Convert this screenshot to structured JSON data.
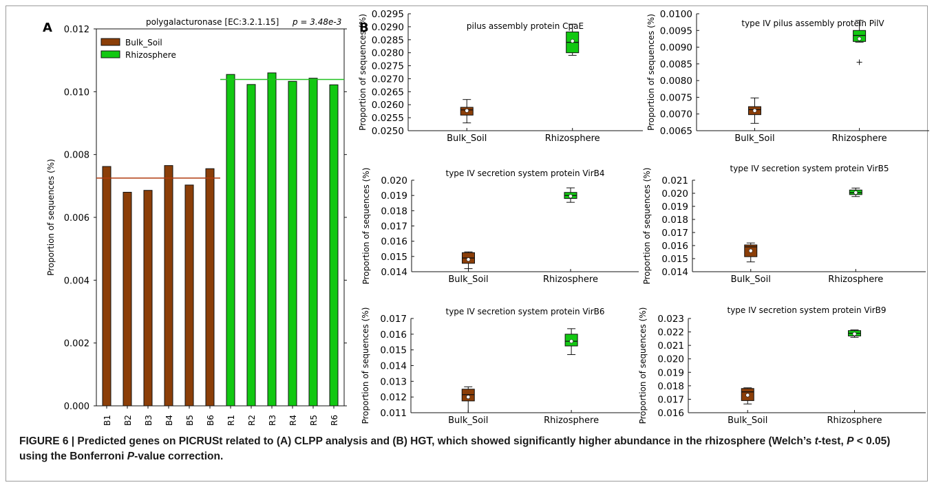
{
  "panel_labels": {
    "a": "A",
    "b": "B"
  },
  "colors": {
    "bulk": "#8b3e08",
    "rhizosphere": "#12c812",
    "bulk_line": "#b03a0e",
    "rhizo_line": "#20c020"
  },
  "caption": {
    "prefix": "FIGURE 6 | Predicted genes on PICRUSt related to (A) CLPP analysis and (B) HGT, which showed significantly higher abundance in the rhizosphere (Welch’s ",
    "t": "t",
    "mid": "-test, ",
    "P1": "P",
    "mid2": " < 0.05) using the Bonferroni ",
    "P2": "P",
    "suffix": "-value correction."
  },
  "chart_data": [
    {
      "type": "bar",
      "title": "polygalacturonase [EC:3.2.1.15]",
      "pvalue": "p = 3.48e-3",
      "ylabel": "Proportion of sequences (%)",
      "ylim": [
        0,
        0.012
      ],
      "yticks": [
        "0.000",
        "0.002",
        "0.004",
        "0.006",
        "0.008",
        "0.010",
        "0.012"
      ],
      "categories": [
        "B1",
        "B2",
        "B3",
        "B4",
        "B5",
        "B6",
        "R1",
        "R2",
        "R3",
        "R4",
        "R5",
        "R6"
      ],
      "values": [
        0.00762,
        0.0068,
        0.00686,
        0.00765,
        0.00703,
        0.00755,
        0.01055,
        0.01023,
        0.0106,
        0.01033,
        0.01043,
        0.01022
      ],
      "groups": [
        "bulk",
        "bulk",
        "bulk",
        "bulk",
        "bulk",
        "bulk",
        "rhizo",
        "rhizo",
        "rhizo",
        "rhizo",
        "rhizo",
        "rhizo"
      ],
      "group_means": {
        "bulk": 0.00725,
        "rhizo": 0.01039
      },
      "legend": [
        {
          "key": "bulk",
          "label": "Bulk_Soil"
        },
        {
          "key": "rhizo",
          "label": "Rhizosphere"
        }
      ],
      "legend_position": "top-left"
    },
    {
      "type": "box",
      "title": "pilus assembly protein CpaE",
      "ylabel": "Proportion of sequences (%)",
      "ylim": [
        0.025,
        0.0295
      ],
      "yticks": [
        "0.0250",
        "0.0255",
        "0.0260",
        "0.0265",
        "0.0270",
        "0.0275",
        "0.0280",
        "0.0285",
        "0.0290",
        "0.0295"
      ],
      "categories": [
        "Bulk_Soil",
        "Rhizosphere"
      ],
      "boxes": [
        {
          "whislo": 0.0253,
          "q1": 0.0256,
          "med": 0.0258,
          "mean": 0.02577,
          "q3": 0.0259,
          "whishi": 0.0262,
          "fliers": []
        },
        {
          "whislo": 0.0279,
          "q1": 0.028,
          "med": 0.0284,
          "mean": 0.02845,
          "q3": 0.0288,
          "whishi": 0.0291,
          "fliers": []
        }
      ]
    },
    {
      "type": "box",
      "title": "type IV pilus assembly protein PilV",
      "ylabel": "Proportion of sequences (%)",
      "ylim": [
        0.0065,
        0.01
      ],
      "yticks": [
        "0.0065",
        "0.0070",
        "0.0075",
        "0.0080",
        "0.0085",
        "0.0090",
        "0.0095",
        "0.0100"
      ],
      "categories": [
        "Bulk_Soil",
        "Rhizosphere"
      ],
      "boxes": [
        {
          "whislo": 0.00672,
          "q1": 0.00698,
          "med": 0.00713,
          "mean": 0.0071,
          "q3": 0.00722,
          "whishi": 0.00748,
          "fliers": []
        },
        {
          "whislo": 0.00915,
          "q1": 0.00917,
          "med": 0.00935,
          "mean": 0.00925,
          "q3": 0.0095,
          "whishi": 0.0098,
          "fliers": [
            0.00855
          ]
        }
      ]
    },
    {
      "type": "box",
      "title": "type IV secretion system protein VirB4",
      "ylabel": "Proportion of sequences (%)",
      "ylim": [
        0.014,
        0.02
      ],
      "yticks": [
        "0.014",
        "0.015",
        "0.016",
        "0.017",
        "0.018",
        "0.019",
        "0.020"
      ],
      "categories": [
        "Bulk_Soil",
        "Rhizosphere"
      ],
      "boxes": [
        {
          "whislo": 0.0142,
          "q1": 0.01455,
          "med": 0.0149,
          "mean": 0.0148,
          "q3": 0.01525,
          "whishi": 0.0153,
          "fliers": []
        },
        {
          "whislo": 0.01855,
          "q1": 0.0188,
          "med": 0.019,
          "mean": 0.01895,
          "q3": 0.0192,
          "whishi": 0.0195,
          "fliers": []
        }
      ]
    },
    {
      "type": "box",
      "title": "type IV secretion system protein VirB5",
      "ylabel": "Proportion of sequences (%)",
      "ylim": [
        0.014,
        0.021
      ],
      "yticks": [
        "0.014",
        "0.015",
        "0.016",
        "0.017",
        "0.018",
        "0.019",
        "0.020",
        "0.021"
      ],
      "categories": [
        "Bulk_Soil",
        "Rhizosphere"
      ],
      "boxes": [
        {
          "whislo": 0.01475,
          "q1": 0.01515,
          "med": 0.0159,
          "mean": 0.0156,
          "q3": 0.01605,
          "whishi": 0.0162,
          "fliers": []
        },
        {
          "whislo": 0.01975,
          "q1": 0.0199,
          "med": 0.02005,
          "mean": 0.02005,
          "q3": 0.02025,
          "whishi": 0.0204,
          "fliers": []
        }
      ]
    },
    {
      "type": "box",
      "title": "type IV secretion system protein VirB6",
      "ylabel": "Proportion of sequences (%)",
      "ylim": [
        0.011,
        0.017
      ],
      "yticks": [
        "0.011",
        "0.012",
        "0.013",
        "0.014",
        "0.015",
        "0.016",
        "0.017"
      ],
      "categories": [
        "Bulk_Soil",
        "Rhizosphere"
      ],
      "boxes": [
        {
          "whislo": 0.011,
          "q1": 0.01175,
          "med": 0.01215,
          "mean": 0.012,
          "q3": 0.0125,
          "whishi": 0.01265,
          "fliers": []
        },
        {
          "whislo": 0.0147,
          "q1": 0.01525,
          "med": 0.01555,
          "mean": 0.01555,
          "q3": 0.016,
          "whishi": 0.01635,
          "fliers": []
        }
      ]
    },
    {
      "type": "box",
      "title": "type IV secretion system protein VirB9",
      "ylabel": "Proportion of sequences (%)",
      "ylim": [
        0.016,
        0.023
      ],
      "yticks": [
        "0.016",
        "0.017",
        "0.018",
        "0.019",
        "0.020",
        "0.021",
        "0.022",
        "0.023"
      ],
      "categories": [
        "Bulk_Soil",
        "Rhizosphere"
      ],
      "boxes": [
        {
          "whislo": 0.01665,
          "q1": 0.0169,
          "med": 0.01755,
          "mean": 0.0173,
          "q3": 0.0178,
          "whishi": 0.01785,
          "fliers": []
        },
        {
          "whislo": 0.0216,
          "q1": 0.0217,
          "med": 0.0219,
          "mean": 0.02185,
          "q3": 0.0221,
          "whishi": 0.02215,
          "fliers": []
        }
      ]
    }
  ]
}
